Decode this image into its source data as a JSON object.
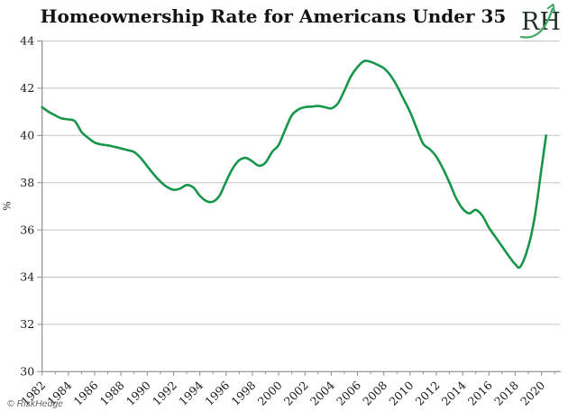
{
  "footer": {
    "copyright": "© RiskHedge"
  },
  "logo": {
    "text": "RH",
    "text_color": "#223128",
    "arrow_color": "#3fa963"
  },
  "chart_data": {
    "type": "line",
    "title": "Homeownership Rate for Americans Under 35",
    "xlabel": "",
    "ylabel": "%",
    "ylim": [
      30,
      44
    ],
    "xlim": [
      1982,
      2021.4
    ],
    "yticks": [
      30,
      32,
      34,
      36,
      38,
      40,
      42,
      44
    ],
    "xticks_major": [
      1982,
      1984,
      1986,
      1988,
      1990,
      1992,
      1994,
      1996,
      1998,
      2000,
      2002,
      2004,
      2006,
      2008,
      2010,
      2012,
      2014,
      2016,
      2018,
      2020
    ],
    "xticks_minor": [
      1983,
      1985,
      1987,
      1989,
      1991,
      1993,
      1995,
      1997,
      1999,
      2001,
      2003,
      2005,
      2007,
      2009,
      2011,
      2013,
      2015,
      2017,
      2019,
      2021
    ],
    "grid": true,
    "legend": "none",
    "line_color": "#17964a",
    "grid_color": "#c4c4c4",
    "axis_color": "#8c8c8c",
    "series": [
      {
        "name": "homeownership_rate_under_35_pct",
        "points": [
          [
            1982.0,
            41.2
          ],
          [
            1982.5,
            41.0
          ],
          [
            1983.0,
            40.85
          ],
          [
            1983.5,
            40.72
          ],
          [
            1984.0,
            40.68
          ],
          [
            1984.5,
            40.6
          ],
          [
            1985.0,
            40.15
          ],
          [
            1985.5,
            39.9
          ],
          [
            1986.0,
            39.7
          ],
          [
            1986.5,
            39.62
          ],
          [
            1987.0,
            39.58
          ],
          [
            1987.5,
            39.52
          ],
          [
            1988.0,
            39.45
          ],
          [
            1988.5,
            39.38
          ],
          [
            1989.0,
            39.3
          ],
          [
            1989.5,
            39.05
          ],
          [
            1990.0,
            38.7
          ],
          [
            1990.5,
            38.35
          ],
          [
            1991.0,
            38.05
          ],
          [
            1991.5,
            37.82
          ],
          [
            1992.0,
            37.7
          ],
          [
            1992.5,
            37.75
          ],
          [
            1993.0,
            37.9
          ],
          [
            1993.5,
            37.8
          ],
          [
            1994.0,
            37.45
          ],
          [
            1994.5,
            37.22
          ],
          [
            1995.0,
            37.2
          ],
          [
            1995.5,
            37.45
          ],
          [
            1996.0,
            38.05
          ],
          [
            1996.5,
            38.6
          ],
          [
            1997.0,
            38.95
          ],
          [
            1997.5,
            39.05
          ],
          [
            1998.0,
            38.9
          ],
          [
            1998.5,
            38.72
          ],
          [
            1999.0,
            38.85
          ],
          [
            1999.5,
            39.3
          ],
          [
            2000.0,
            39.6
          ],
          [
            2000.5,
            40.25
          ],
          [
            2001.0,
            40.85
          ],
          [
            2001.5,
            41.1
          ],
          [
            2002.0,
            41.2
          ],
          [
            2002.5,
            41.22
          ],
          [
            2003.0,
            41.25
          ],
          [
            2003.5,
            41.2
          ],
          [
            2004.0,
            41.15
          ],
          [
            2004.5,
            41.35
          ],
          [
            2005.0,
            41.9
          ],
          [
            2005.5,
            42.5
          ],
          [
            2006.0,
            42.9
          ],
          [
            2006.5,
            43.15
          ],
          [
            2007.0,
            43.12
          ],
          [
            2007.5,
            43.0
          ],
          [
            2008.0,
            42.85
          ],
          [
            2008.5,
            42.55
          ],
          [
            2009.0,
            42.1
          ],
          [
            2009.5,
            41.55
          ],
          [
            2010.0,
            41.0
          ],
          [
            2010.5,
            40.3
          ],
          [
            2011.0,
            39.65
          ],
          [
            2011.5,
            39.42
          ],
          [
            2012.0,
            39.1
          ],
          [
            2012.5,
            38.6
          ],
          [
            2013.0,
            38.0
          ],
          [
            2013.5,
            37.35
          ],
          [
            2014.0,
            36.9
          ],
          [
            2014.5,
            36.7
          ],
          [
            2015.0,
            36.85
          ],
          [
            2015.5,
            36.6
          ],
          [
            2016.0,
            36.1
          ],
          [
            2016.5,
            35.7
          ],
          [
            2017.0,
            35.3
          ],
          [
            2017.5,
            34.9
          ],
          [
            2018.0,
            34.55
          ],
          [
            2018.4,
            34.45
          ],
          [
            2019.0,
            35.3
          ],
          [
            2019.5,
            36.6
          ],
          [
            2020.0,
            38.6
          ],
          [
            2020.35,
            40.0
          ]
        ]
      }
    ]
  }
}
